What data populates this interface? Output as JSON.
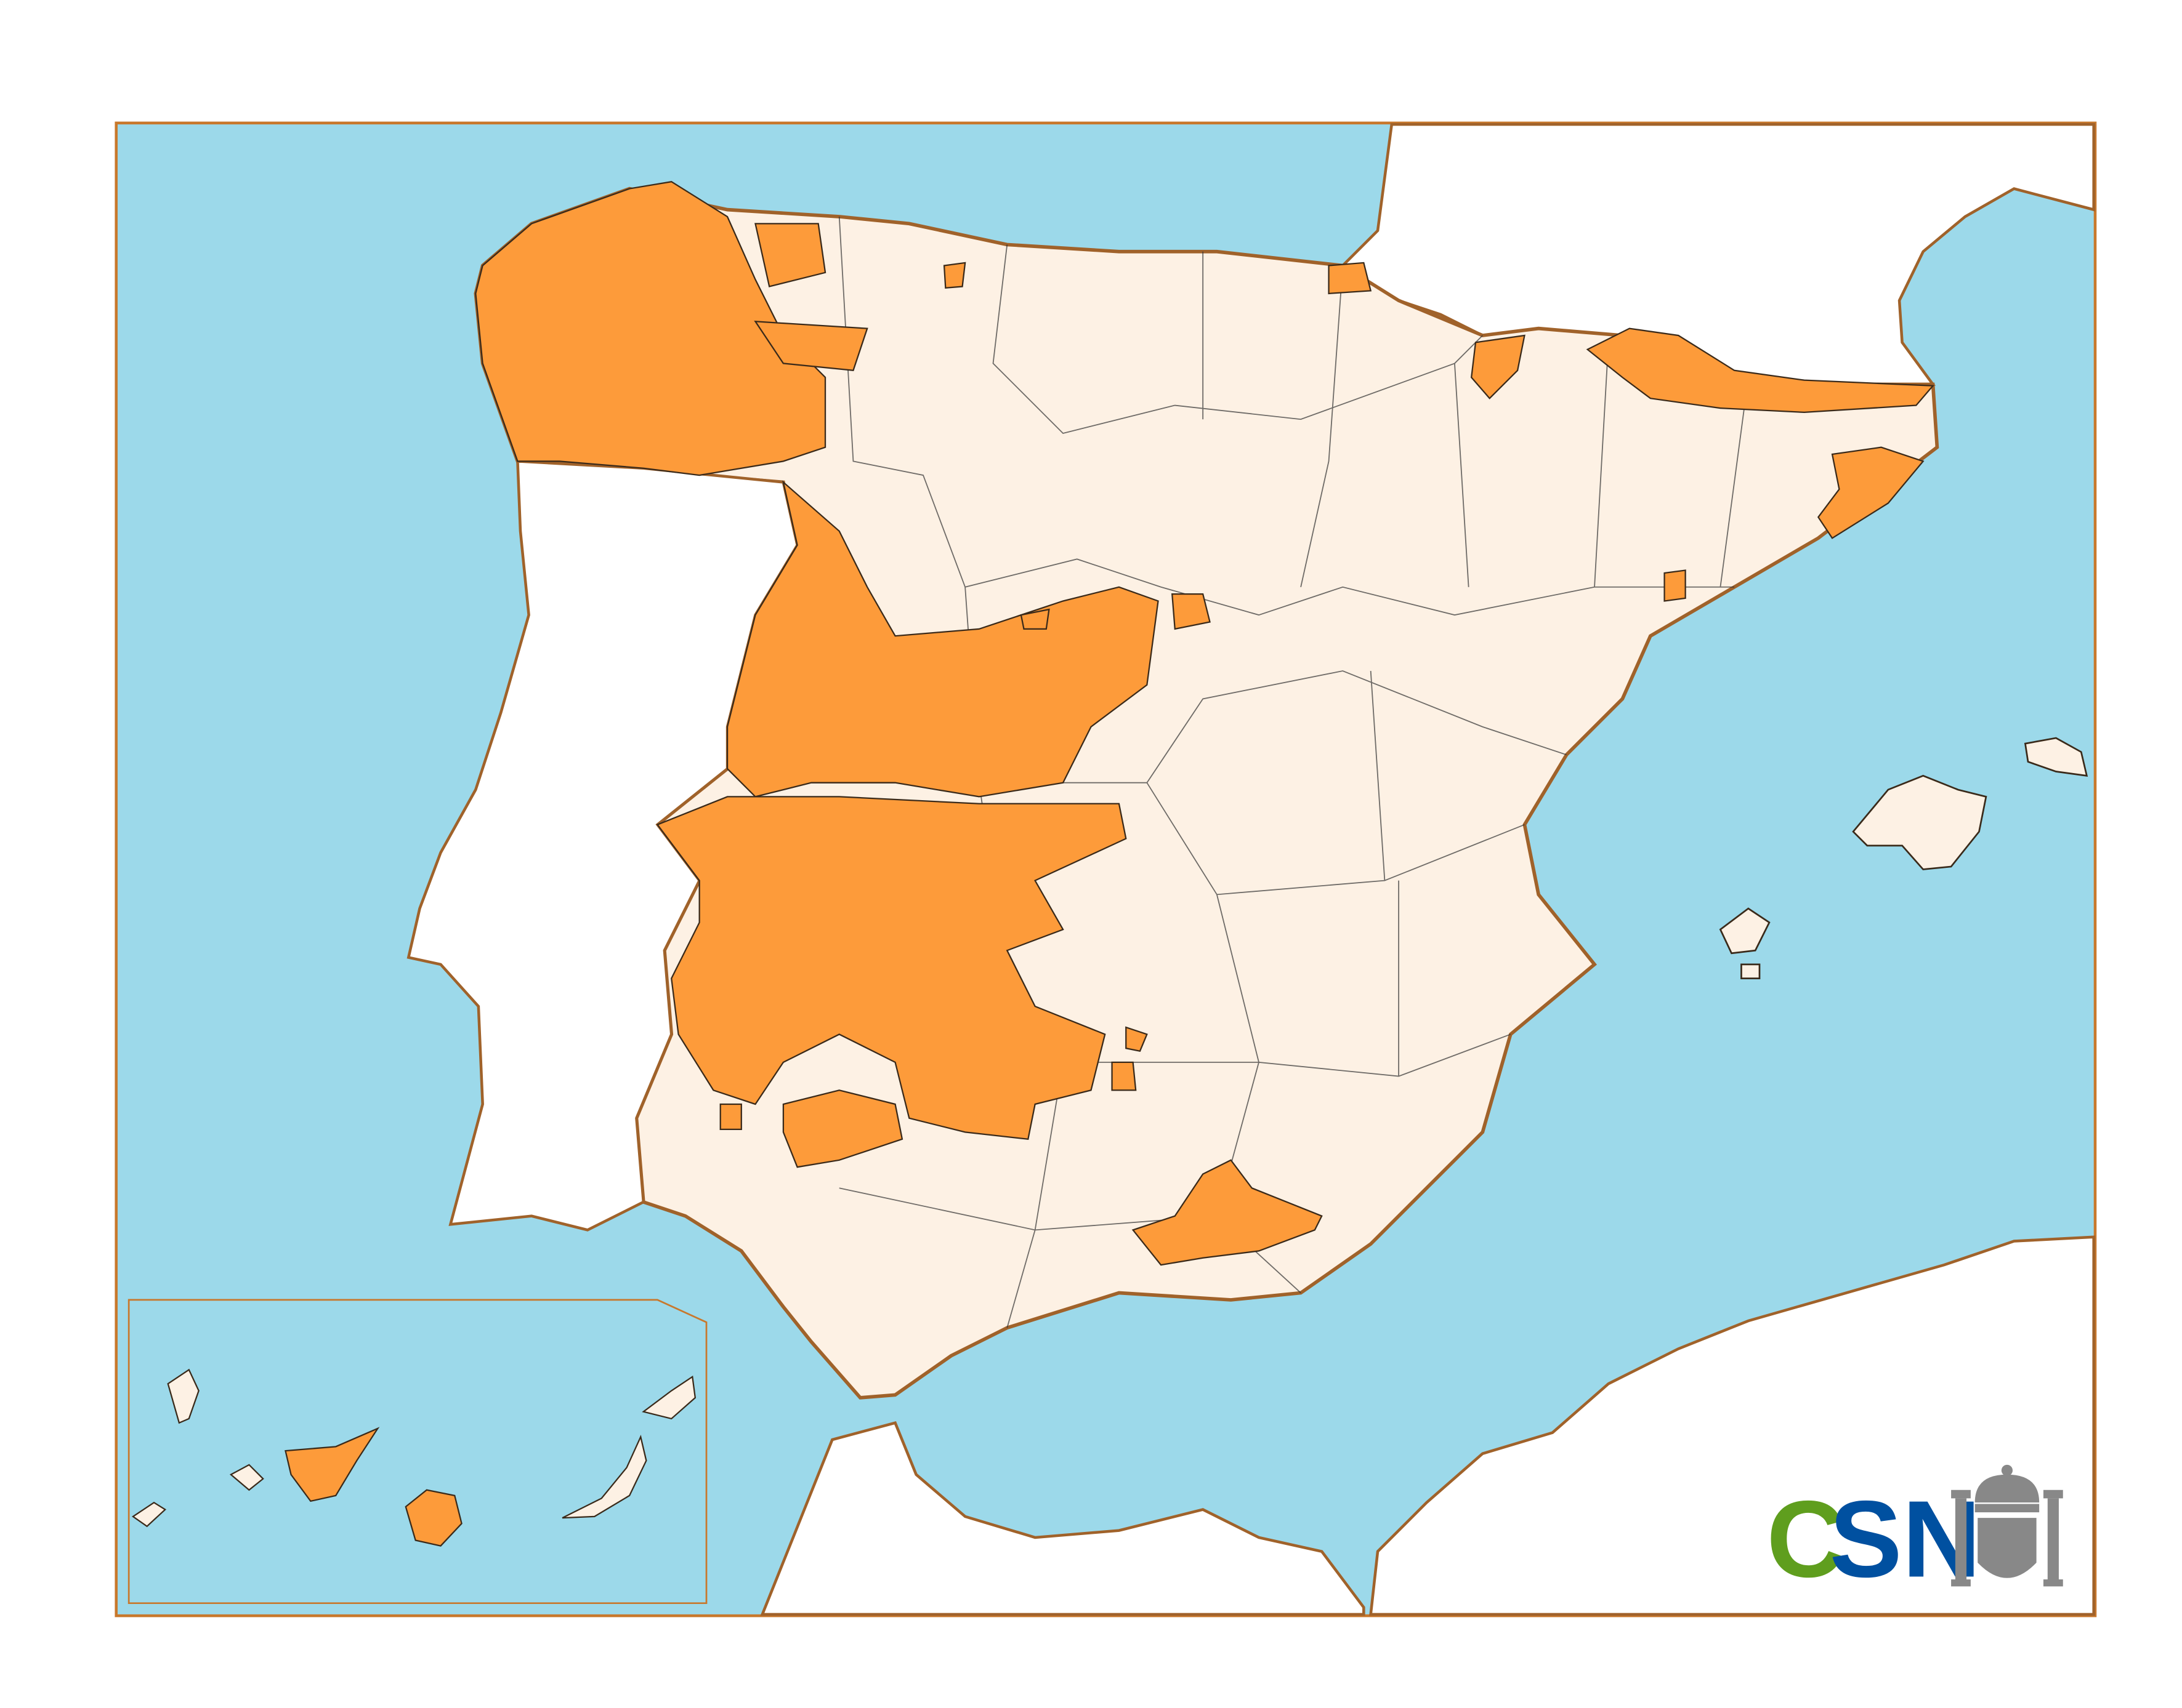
{
  "logo": {
    "letters": [
      {
        "text": "C",
        "color": "#5f9e1e"
      },
      {
        "text": "SN",
        "color": "#0050a0"
      }
    ],
    "emblem": "spain-coat-of-arms"
  },
  "colors": {
    "sea": "#9cd9ea",
    "land": "#fdf1e4",
    "highlighted_municipalities": "#fd9b3a",
    "coastline": "#a0622a",
    "frame": "#c8782c",
    "municipal_borders": "#c9bcb0"
  }
}
